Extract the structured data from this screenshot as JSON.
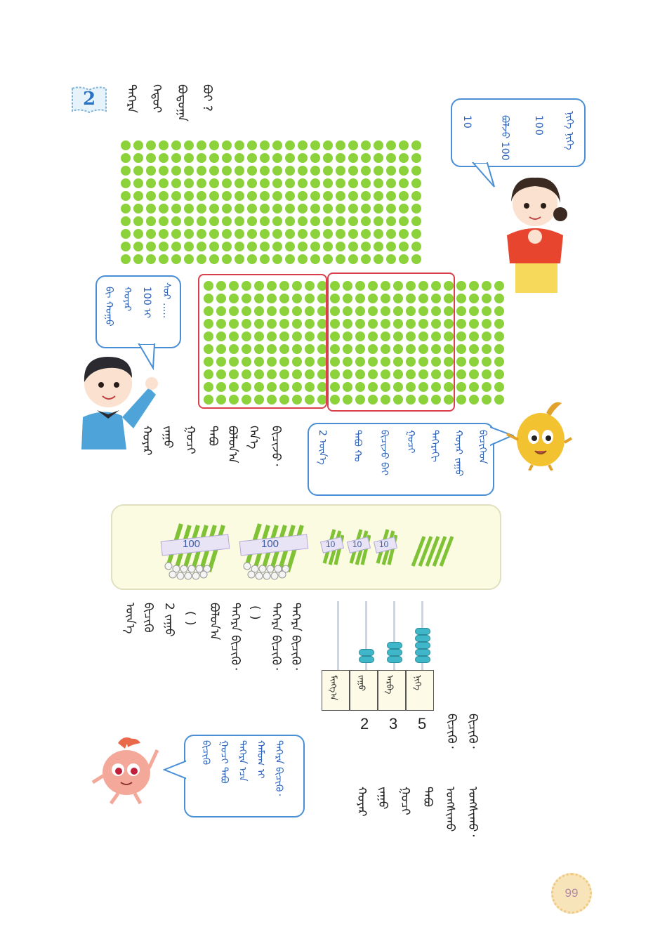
{
  "section": {
    "number": "2",
    "question_lines": [
      "ᠳᠡᠭᠡᠷᠡ",
      "ᠬᠡᠳᠦᠢ",
      "ᠪᠣᠳᠣᠭᠠ",
      "ᠪᠣᠢ ?"
    ]
  },
  "girl_bubble": {
    "lines": [
      "ᠨᠢᠭᠡ ᠨᠢᠭᠡ",
      "100",
      "ᠪᠣᠯᠵᠤ 100",
      "10"
    ]
  },
  "boy_bubble": {
    "lines": [
      "ᠪᠢ ᠬᠤᠭᠤ",
      "ᠬᠣᠶᠠᠷ",
      "100 ᠢ",
      "ᠰᠤᠷ ....."
    ]
  },
  "mid_text": {
    "lines": [
      "ᠬᠣᠶᠠᠷ",
      "ᠵᠠᠭᠤ",
      "ᠭᠤᠴᠢ",
      "ᠳᠠᠪᠤ",
      "ᠪᠣᠯᠤᠨ᠎ᠠ",
      "ᠭᠡᠨ᠎ᠡ",
      "ᠪᠢᠴᠢᠵᠦ᠂"
    ]
  },
  "potato_bubble": {
    "lines": [
      "ᠪᠢᠴᠢᠭᠡᠳ",
      "ᠬᠣᠶᠠᠷ ᠵᠠᠭᠤ",
      "ᠳᠡᠭᠡᠷᠡᠬᠢ",
      "ᠭᠤᠴᠢ",
      "ᠪᠢᠴᠢᠵᠦ ᠪᠠᠢ",
      "ᠳᠠᠪᠤ ᠬᠤ",
      "2 ᠦᠨ᠎ᠡ"
    ]
  },
  "bundles": {
    "hundred_label": "100",
    "ten_label": "10"
  },
  "fill_blank": {
    "lines": [
      "ᠳᠡᠭᠡᠷᠡ ᠪᠢᠴᠢᠬᠦ᠂",
      "(      )",
      "ᠪᠣᠯᠤᠨ᠎ᠠ",
      "(      )",
      "2  ᠵᠠᠭᠤ",
      "ᠪᠢᠴᠢᠬᠦ",
      "ᠦᠨ᠎ᠡ"
    ]
  },
  "abacus": {
    "place_labels": [
      "ᠮᠢᠩᠭ᠎ᠠ",
      "ᠵᠠᠭᠤ",
      "ᠠᠷᠪᠠ",
      "ᠨᠢᠭᠡ"
    ],
    "digits": [
      "2",
      "3",
      "5"
    ],
    "beads": [
      0,
      2,
      3,
      5
    ]
  },
  "read_text": {
    "lines": [
      "ᠪᠢᠴᠢᠬᠦ᠂",
      "ᠤᠩᠰᠢᠬᠤ",
      "ᠬᠣᠶᠠᠷ",
      "ᠵᠠᠭᠤ",
      "ᠭᠤᠴᠢ",
      "ᠳᠠᠪᠤ",
      "ᠤᠩᠰᠢᠬᠤ᠂"
    ]
  },
  "peach_bubble": {
    "lines": [
      "ᠳᠡᠭᠡᠷᠡ ᠪᠢᠴᠢᠬᠦ᠂",
      "ᠬᠠᠮᠤᠭ ᠢ",
      "ᠳᠡᠭᠡᠷᠡ ᠡᠴᠡ",
      "ᠭᠤᠴᠢ ᠳᠠᠪᠤ",
      "ᠪᠢᠴᠢᠬᠦ"
    ]
  },
  "page_number": "99",
  "colors": {
    "dot": "#8bd23b",
    "bubble_border": "#4a8fd6",
    "box_border": "#d9404b",
    "bead": "#3fb7c8"
  }
}
